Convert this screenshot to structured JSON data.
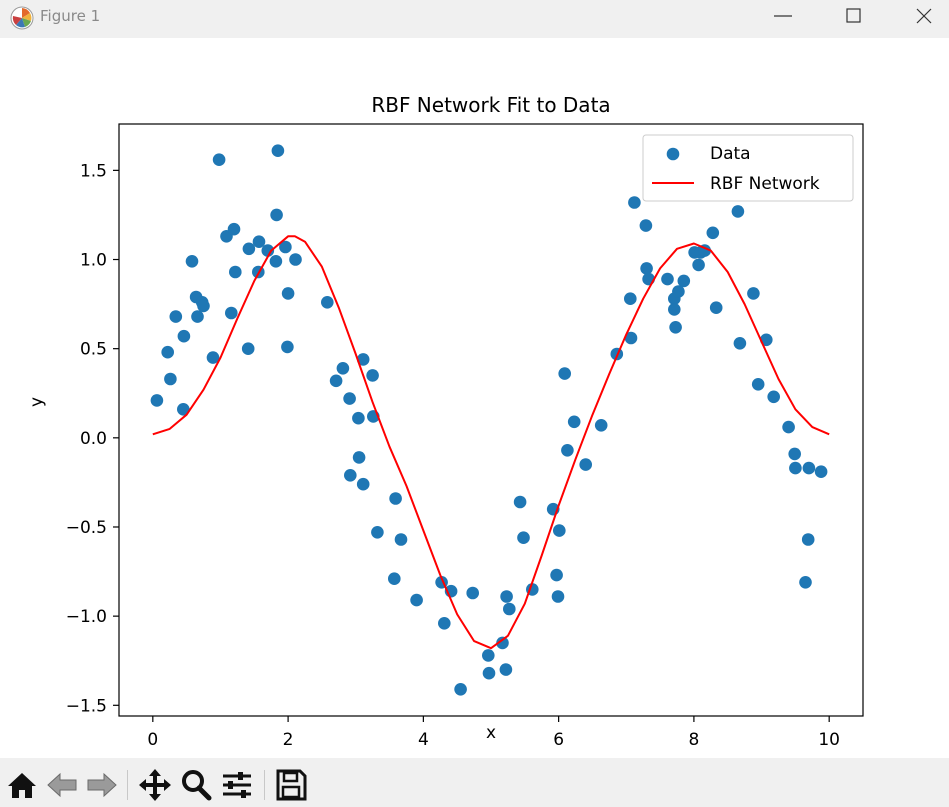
{
  "window": {
    "title": "Figure 1"
  },
  "toolbar": {
    "buttons": [
      "home-icon",
      "back-icon",
      "forward-icon",
      "pan-icon",
      "zoom-icon",
      "configure-icon",
      "save-icon"
    ]
  },
  "chart_data": {
    "type": "scatter",
    "title": "RBF Network Fit to Data",
    "xlabel": "x",
    "ylabel": "y",
    "xlim": [
      -0.5,
      10.5
    ],
    "ylim": [
      -1.56,
      1.76
    ],
    "xticks": [
      0,
      2,
      4,
      6,
      8,
      10
    ],
    "xtick_labels": [
      "0",
      "2",
      "4",
      "6",
      "8",
      "10"
    ],
    "yticks": [
      -1.5,
      -1.0,
      -0.5,
      0.0,
      0.5,
      1.0,
      1.5
    ],
    "ytick_labels": [
      "−1.5",
      "−1.0",
      "−0.5",
      "0.0",
      "0.5",
      "1.0",
      "1.5"
    ],
    "legend": {
      "placement": "top-right",
      "entries": [
        "Data",
        "RBF Network"
      ]
    },
    "colors": {
      "data": "#1f77b4",
      "fit": "#ff0000"
    },
    "series": [
      {
        "name": "Data",
        "kind": "scatter",
        "points": [
          [
            0.06,
            0.21
          ],
          [
            0.22,
            0.48
          ],
          [
            0.26,
            0.33
          ],
          [
            0.34,
            0.68
          ],
          [
            0.45,
            0.16
          ],
          [
            0.46,
            0.57
          ],
          [
            0.58,
            0.99
          ],
          [
            0.64,
            0.79
          ],
          [
            0.66,
            0.68
          ],
          [
            0.73,
            0.76
          ],
          [
            0.75,
            0.74
          ],
          [
            0.89,
            0.45
          ],
          [
            0.98,
            1.56
          ],
          [
            1.09,
            1.13
          ],
          [
            1.16,
            0.7
          ],
          [
            1.2,
            1.17
          ],
          [
            1.22,
            0.93
          ],
          [
            1.41,
            0.5
          ],
          [
            1.42,
            1.06
          ],
          [
            1.56,
            0.93
          ],
          [
            1.57,
            1.1
          ],
          [
            1.7,
            1.05
          ],
          [
            1.82,
            0.99
          ],
          [
            1.83,
            1.25
          ],
          [
            1.85,
            1.61
          ],
          [
            1.96,
            1.07
          ],
          [
            2.0,
            0.81
          ],
          [
            1.99,
            0.51
          ],
          [
            2.11,
            1.0
          ],
          [
            2.58,
            0.76
          ],
          [
            2.71,
            0.32
          ],
          [
            2.81,
            0.39
          ],
          [
            2.91,
            0.22
          ],
          [
            2.92,
            -0.21
          ],
          [
            3.04,
            0.11
          ],
          [
            3.05,
            -0.11
          ],
          [
            3.11,
            0.44
          ],
          [
            3.11,
            -0.26
          ],
          [
            3.25,
            0.35
          ],
          [
            3.26,
            0.12
          ],
          [
            3.32,
            -0.53
          ],
          [
            3.57,
            -0.79
          ],
          [
            3.59,
            -0.34
          ],
          [
            3.67,
            -0.57
          ],
          [
            3.9,
            -0.91
          ],
          [
            4.27,
            -0.81
          ],
          [
            4.31,
            -1.04
          ],
          [
            4.41,
            -0.86
          ],
          [
            4.55,
            -1.41
          ],
          [
            4.73,
            -0.87
          ],
          [
            4.96,
            -1.22
          ],
          [
            4.97,
            -1.32
          ],
          [
            5.17,
            -1.15
          ],
          [
            5.22,
            -1.3
          ],
          [
            5.23,
            -0.89
          ],
          [
            5.27,
            -0.96
          ],
          [
            5.43,
            -0.36
          ],
          [
            5.48,
            -0.56
          ],
          [
            5.61,
            -0.85
          ],
          [
            5.92,
            -0.4
          ],
          [
            5.97,
            -0.77
          ],
          [
            5.99,
            -0.89
          ],
          [
            6.01,
            -0.52
          ],
          [
            6.09,
            0.36
          ],
          [
            6.13,
            -0.07
          ],
          [
            6.23,
            0.09
          ],
          [
            6.4,
            -0.15
          ],
          [
            6.63,
            0.07
          ],
          [
            6.86,
            0.47
          ],
          [
            7.06,
            0.78
          ],
          [
            7.07,
            0.56
          ],
          [
            7.12,
            1.32
          ],
          [
            7.29,
            1.19
          ],
          [
            7.3,
            0.95
          ],
          [
            7.33,
            0.89
          ],
          [
            7.61,
            0.89
          ],
          [
            7.71,
            0.78
          ],
          [
            7.71,
            0.72
          ],
          [
            7.73,
            0.62
          ],
          [
            7.77,
            0.82
          ],
          [
            7.85,
            0.88
          ],
          [
            8.01,
            1.04
          ],
          [
            8.07,
            0.97
          ],
          [
            8.1,
            1.04
          ],
          [
            8.16,
            1.05
          ],
          [
            8.28,
            1.15
          ],
          [
            8.33,
            0.73
          ],
          [
            8.65,
            1.27
          ],
          [
            8.68,
            0.53
          ],
          [
            8.88,
            0.81
          ],
          [
            8.95,
            0.3
          ],
          [
            9.07,
            0.55
          ],
          [
            9.18,
            0.23
          ],
          [
            9.4,
            0.06
          ],
          [
            9.49,
            -0.09
          ],
          [
            9.5,
            -0.17
          ],
          [
            9.65,
            -0.81
          ],
          [
            9.69,
            -0.57
          ],
          [
            9.7,
            -0.17
          ],
          [
            9.88,
            -0.19
          ]
        ]
      },
      {
        "name": "RBF Network",
        "kind": "line",
        "points": [
          [
            0.0,
            0.02
          ],
          [
            0.25,
            0.05
          ],
          [
            0.5,
            0.13
          ],
          [
            0.75,
            0.27
          ],
          [
            1.0,
            0.45
          ],
          [
            1.25,
            0.67
          ],
          [
            1.5,
            0.88
          ],
          [
            1.75,
            1.05
          ],
          [
            2.0,
            1.13
          ],
          [
            2.1,
            1.13
          ],
          [
            2.25,
            1.1
          ],
          [
            2.5,
            0.96
          ],
          [
            2.75,
            0.73
          ],
          [
            3.0,
            0.47
          ],
          [
            3.25,
            0.2
          ],
          [
            3.5,
            -0.05
          ],
          [
            3.75,
            -0.27
          ],
          [
            4.0,
            -0.52
          ],
          [
            4.25,
            -0.77
          ],
          [
            4.5,
            -0.99
          ],
          [
            4.75,
            -1.14
          ],
          [
            5.0,
            -1.18
          ],
          [
            5.25,
            -1.11
          ],
          [
            5.5,
            -0.93
          ],
          [
            5.75,
            -0.66
          ],
          [
            6.0,
            -0.38
          ],
          [
            6.25,
            -0.12
          ],
          [
            6.5,
            0.13
          ],
          [
            6.75,
            0.36
          ],
          [
            7.0,
            0.58
          ],
          [
            7.25,
            0.78
          ],
          [
            7.5,
            0.95
          ],
          [
            7.75,
            1.06
          ],
          [
            8.0,
            1.09
          ],
          [
            8.25,
            1.05
          ],
          [
            8.5,
            0.93
          ],
          [
            8.75,
            0.75
          ],
          [
            9.0,
            0.54
          ],
          [
            9.25,
            0.33
          ],
          [
            9.5,
            0.16
          ],
          [
            9.75,
            0.06
          ],
          [
            10.0,
            0.02
          ]
        ]
      }
    ]
  }
}
